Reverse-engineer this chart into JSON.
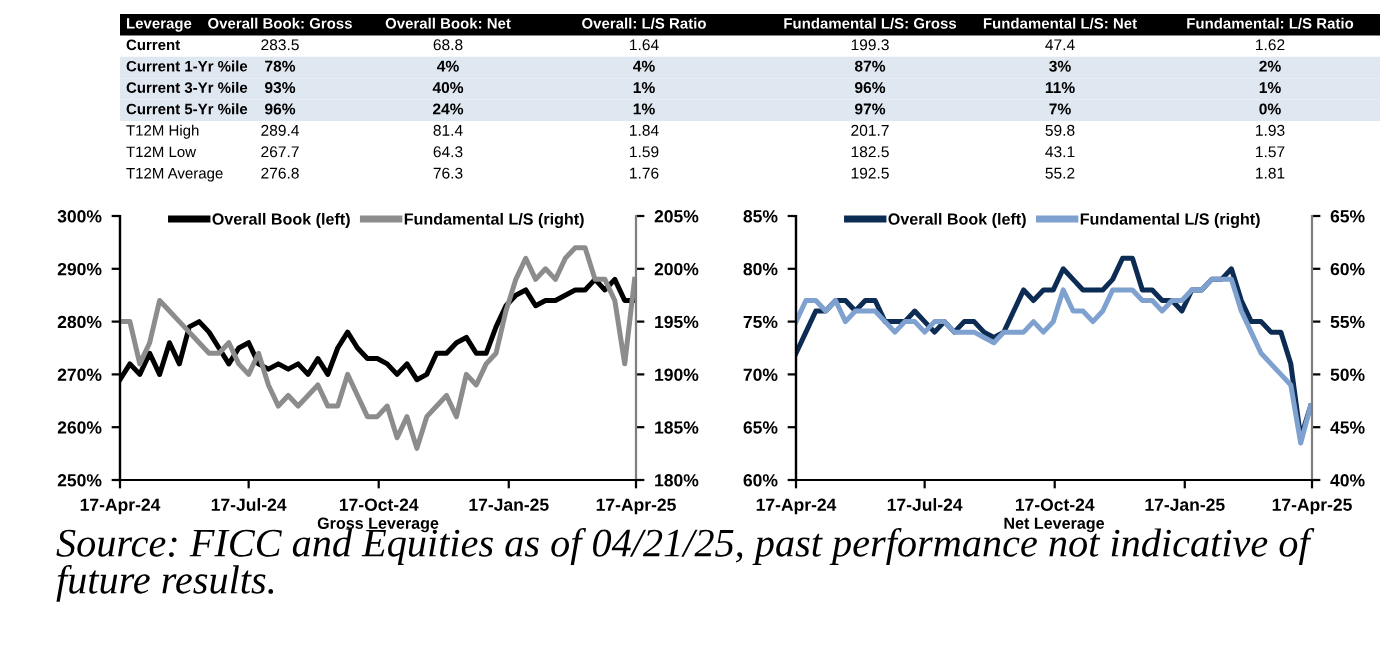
{
  "chart_data": [
    {
      "type": "other",
      "categories": [
        "Leverage",
        "Overall Book: Gross",
        "Overall Book: Net",
        "Overall: L/S Ratio",
        "Fundamental L/S: Gross",
        "Fundamental L/S: Net",
        "Fundamental: L/S Ratio"
      ],
      "y_categories": [
        "Current",
        "Current 1-Yr %ile",
        "Current 3-Yr %ile",
        "Current 5-Yr %ile",
        "T12M High",
        "T12M Low",
        "T12M Average"
      ],
      "cell_labels": [
        [
          "283.5",
          "68.8",
          "1.64",
          "199.3",
          "47.4",
          "1.62"
        ],
        [
          "78%",
          "4%",
          "4%",
          "87%",
          "3%",
          "2%"
        ],
        [
          "93%",
          "40%",
          "1%",
          "96%",
          "11%",
          "1%"
        ],
        [
          "96%",
          "24%",
          "1%",
          "97%",
          "7%",
          "0%"
        ],
        [
          "289.4",
          "81.4",
          "1.84",
          "201.7",
          "59.8",
          "1.93"
        ],
        [
          "267.7",
          "64.3",
          "1.59",
          "182.5",
          "43.1",
          "1.57"
        ],
        [
          "276.8",
          "76.3",
          "1.76",
          "192.5",
          "55.2",
          "1.81"
        ]
      ]
    },
    {
      "type": "line",
      "xlabel": "Gross Leverage",
      "legend": "top",
      "grid": false,
      "x": [
        "2024-04-17",
        "2024-04-24",
        "2024-05-01",
        "2024-05-08",
        "2024-05-15",
        "2024-05-22",
        "2024-05-29",
        "2024-06-05",
        "2024-06-12",
        "2024-06-19",
        "2024-06-26",
        "2024-07-03",
        "2024-07-10",
        "2024-07-17",
        "2024-07-24",
        "2024-07-31",
        "2024-08-07",
        "2024-08-14",
        "2024-08-21",
        "2024-08-28",
        "2024-09-04",
        "2024-09-11",
        "2024-09-18",
        "2024-09-25",
        "2024-10-02",
        "2024-10-09",
        "2024-10-16",
        "2024-10-23",
        "2024-10-30",
        "2024-11-06",
        "2024-11-13",
        "2024-11-20",
        "2024-11-27",
        "2024-12-04",
        "2024-12-11",
        "2024-12-18",
        "2024-12-25",
        "2025-01-01",
        "2025-01-08",
        "2025-01-15",
        "2025-01-22",
        "2025-01-29",
        "2025-02-05",
        "2025-02-12",
        "2025-02-19",
        "2025-02-26",
        "2025-03-05",
        "2025-03-12",
        "2025-03-19",
        "2025-03-26",
        "2025-04-02",
        "2025-04-09",
        "2025-04-16"
      ],
      "xlim": [
        "2024-04-17",
        "2025-04-17"
      ],
      "xticks": [
        {
          "value": "2024-04-17",
          "label": "17-Apr-24"
        },
        {
          "value": "2024-07-17",
          "label": "17-Jul-24"
        },
        {
          "value": "2024-10-17",
          "label": "17-Oct-24"
        },
        {
          "value": "2025-01-17",
          "label": "17-Jan-25"
        },
        {
          "value": "2025-04-17",
          "label": "17-Apr-25"
        }
      ],
      "ylim": [
        250,
        300
      ],
      "yticks": [
        {
          "value": 250,
          "label": "250%"
        },
        {
          "value": 260,
          "label": "260%"
        },
        {
          "value": 270,
          "label": "270%"
        },
        {
          "value": 280,
          "label": "280%"
        },
        {
          "value": 290,
          "label": "290%"
        },
        {
          "value": 300,
          "label": "300%"
        }
      ],
      "y2lim": [
        180,
        205
      ],
      "y2ticks": [
        {
          "value": 180,
          "label": "180%"
        },
        {
          "value": 185,
          "label": "185%"
        },
        {
          "value": 190,
          "label": "190%"
        },
        {
          "value": 195,
          "label": "195%"
        },
        {
          "value": 200,
          "label": "200%"
        },
        {
          "value": 205,
          "label": "205%"
        }
      ],
      "series": [
        {
          "name": "Overall Book (left)",
          "color": "#000000",
          "values": [
            269,
            272,
            270,
            274,
            270,
            276,
            272,
            279,
            280,
            278,
            275,
            272,
            275,
            276,
            272,
            271,
            272,
            271,
            272,
            270,
            273,
            270,
            275,
            278,
            275,
            273,
            273,
            272,
            270,
            272,
            269,
            270,
            274,
            274,
            276,
            277,
            274,
            274,
            279,
            283,
            285,
            286,
            283,
            284,
            284,
            285,
            286,
            286,
            288,
            286,
            288,
            284,
            284
          ]
        },
        {
          "name": "Fundamental L/S (right)",
          "color": "#8c8c8c",
          "axis": "y2",
          "values": [
            195,
            195,
            191,
            193,
            197,
            196,
            195,
            194,
            193,
            192,
            192,
            193,
            191,
            190,
            192,
            189,
            187,
            188,
            187,
            188,
            189,
            187,
            187,
            190,
            188,
            186,
            186,
            187,
            184,
            186,
            183,
            186,
            187,
            188,
            186,
            190,
            189,
            191,
            192,
            196,
            199,
            201,
            199,
            200,
            199,
            201,
            202,
            202,
            199,
            199,
            197,
            191,
            199
          ]
        }
      ]
    },
    {
      "type": "line",
      "xlabel": "Net Leverage",
      "legend": "top",
      "grid": false,
      "annotations": [
        "Source: FICC and Equities as of 04/21/25, past performance not indicative of future results."
      ],
      "x": [
        "2024-04-17",
        "2024-04-24",
        "2024-05-01",
        "2024-05-08",
        "2024-05-15",
        "2024-05-22",
        "2024-05-29",
        "2024-06-05",
        "2024-06-12",
        "2024-06-19",
        "2024-06-26",
        "2024-07-03",
        "2024-07-10",
        "2024-07-17",
        "2024-07-24",
        "2024-07-31",
        "2024-08-07",
        "2024-08-14",
        "2024-08-21",
        "2024-08-28",
        "2024-09-04",
        "2024-09-11",
        "2024-09-18",
        "2024-09-25",
        "2024-10-02",
        "2024-10-09",
        "2024-10-16",
        "2024-10-23",
        "2024-10-30",
        "2024-11-06",
        "2024-11-13",
        "2024-11-20",
        "2024-11-27",
        "2024-12-04",
        "2024-12-11",
        "2024-12-18",
        "2024-12-25",
        "2025-01-01",
        "2025-01-08",
        "2025-01-15",
        "2025-01-22",
        "2025-01-29",
        "2025-02-05",
        "2025-02-12",
        "2025-02-19",
        "2025-02-26",
        "2025-03-05",
        "2025-03-12",
        "2025-03-19",
        "2025-03-26",
        "2025-04-02",
        "2025-04-09",
        "2025-04-16"
      ],
      "xlim": [
        "2024-04-17",
        "2025-04-17"
      ],
      "xticks": [
        {
          "value": "2024-04-17",
          "label": "17-Apr-24"
        },
        {
          "value": "2024-07-17",
          "label": "17-Jul-24"
        },
        {
          "value": "2024-10-17",
          "label": "17-Oct-24"
        },
        {
          "value": "2025-01-17",
          "label": "17-Jan-25"
        },
        {
          "value": "2025-04-17",
          "label": "17-Apr-25"
        }
      ],
      "ylim": [
        60,
        85
      ],
      "yticks": [
        {
          "value": 60,
          "label": "60%"
        },
        {
          "value": 65,
          "label": "65%"
        },
        {
          "value": 70,
          "label": "70%"
        },
        {
          "value": 75,
          "label": "75%"
        },
        {
          "value": 80,
          "label": "80%"
        },
        {
          "value": 85,
          "label": "85%"
        }
      ],
      "y2lim": [
        40,
        65
      ],
      "y2ticks": [
        {
          "value": 40,
          "label": "40%"
        },
        {
          "value": 45,
          "label": "45%"
        },
        {
          "value": 50,
          "label": "50%"
        },
        {
          "value": 55,
          "label": "55%"
        },
        {
          "value": 60,
          "label": "60%"
        },
        {
          "value": 65,
          "label": "65%"
        }
      ],
      "series": [
        {
          "name": "Overall Book (left)",
          "color": "#0d2c54",
          "values": [
            72,
            74,
            76,
            76,
            77,
            77,
            76,
            77,
            77,
            75,
            75,
            75,
            76,
            75,
            74,
            75,
            74,
            75,
            75,
            74,
            73.5,
            74,
            76,
            78,
            77,
            78,
            78,
            80,
            79,
            78,
            78,
            78,
            79,
            81,
            81,
            78,
            78,
            77,
            77,
            76,
            78,
            78,
            79,
            79,
            80,
            77,
            75,
            75,
            74,
            74,
            71,
            64,
            67
          ]
        },
        {
          "name": "Fundamental L/S (right)",
          "color": "#7ea1cf",
          "axis": "y2",
          "values": [
            55,
            57,
            57,
            56,
            57,
            55,
            56,
            56,
            56,
            55,
            54,
            55,
            55,
            54,
            55,
            55,
            54,
            54,
            54,
            53.5,
            53,
            54,
            54,
            54,
            55,
            54,
            55,
            58,
            56,
            56,
            55,
            56,
            58,
            58,
            58,
            57,
            57,
            56,
            57,
            57,
            58,
            58,
            59,
            59,
            59,
            56,
            54,
            52,
            51,
            50,
            49,
            43.5,
            47
          ]
        }
      ]
    }
  ]
}
